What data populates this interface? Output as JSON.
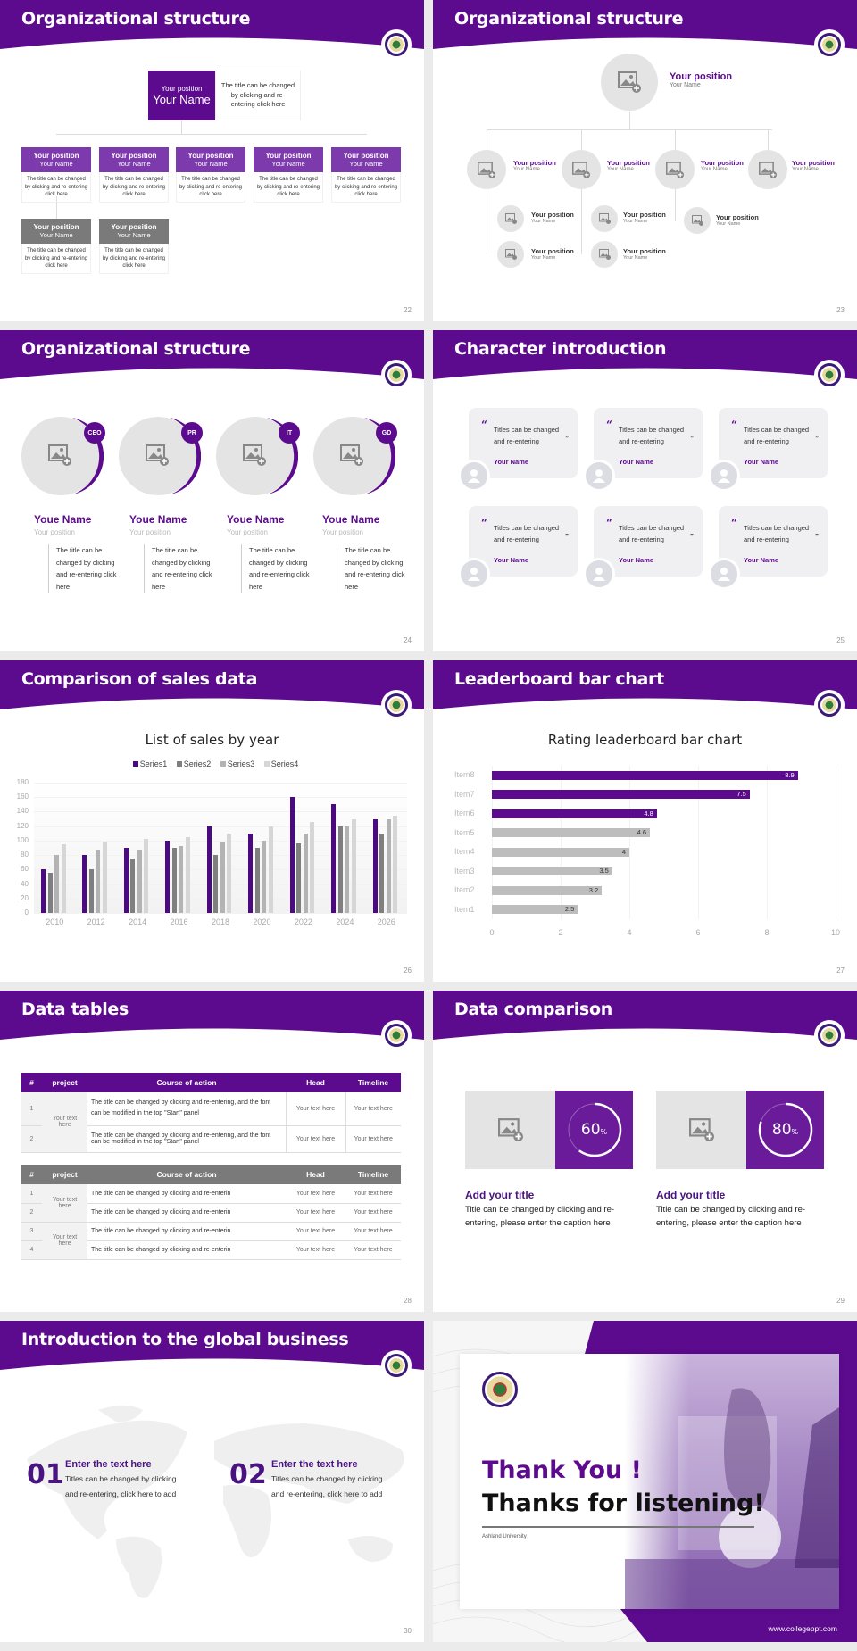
{
  "colors": {
    "purple": "#5c0a8e",
    "purple_light": "#7c3aac",
    "grey_dark": "#7a7a7a",
    "grey_med": "#a6a6a6",
    "grey_light": "#d0d0d0",
    "placeholder": "#e4e4e4"
  },
  "slides": [
    {
      "num": "22",
      "title": "Organizational structure",
      "top": {
        "position": "Your position",
        "name": "Your Name",
        "desc": "The title can be changed by clicking and re-entering click here"
      },
      "cards": [
        {
          "position": "Your position",
          "name": "Your Name",
          "desc": "The title can be changed by clicking and re-entering click here"
        },
        {
          "position": "Your position",
          "name": "Your Name",
          "desc": "The title can be changed by clicking and re-entering click here"
        },
        {
          "position": "Your position",
          "name": "Your Name",
          "desc": "The title can be changed by clicking and re-entering click here"
        },
        {
          "position": "Your position",
          "name": "Your Name",
          "desc": "The title can be changed by clicking and re-entering click here"
        },
        {
          "position": "Your position",
          "name": "Your Name",
          "desc": "The title can be changed by clicking and re-entering click here"
        },
        {
          "position": "Your position",
          "name": "Your Name",
          "desc": "The title can be changed by clicking and re-entering click here"
        },
        {
          "position": "Your position",
          "name": "Your Name",
          "desc": "The title can be changed by clicking and re-entering click here"
        }
      ]
    },
    {
      "num": "23",
      "title": "Organizational structure",
      "top": {
        "position": "Your position",
        "name": "Your Name"
      },
      "level2": [
        {
          "position": "Your position",
          "name": "Your Name"
        },
        {
          "position": "Your position",
          "name": "Your Name"
        },
        {
          "position": "Your position",
          "name": "Your Name"
        },
        {
          "position": "Your position",
          "name": "Your Name"
        }
      ],
      "level3": [
        {
          "position": "Your position",
          "name": "Your Name"
        },
        {
          "position": "Your position",
          "name": "Your Name"
        },
        {
          "position": "Your position",
          "name": "Your Name"
        },
        {
          "position": "Your position",
          "name": "Your Name"
        },
        {
          "position": "Your position",
          "name": "Your Name"
        }
      ]
    },
    {
      "num": "24",
      "title": "Organizational structure",
      "members": [
        {
          "badge": "CEO",
          "name": "Youe Name",
          "position": "Your position",
          "desc": "The title can be changed by clicking and re-entering click here"
        },
        {
          "badge": "PR",
          "name": "Youe Name",
          "position": "Your position",
          "desc": "The title can be changed by clicking and re-entering click here"
        },
        {
          "badge": "IT",
          "name": "Youe Name",
          "position": "Your position",
          "desc": "The title can be changed by clicking and re-entering click here"
        },
        {
          "badge": "GD",
          "name": "Youe Name",
          "position": "Your position",
          "desc": "The title can be changed by clicking and re-entering click here"
        }
      ]
    },
    {
      "num": "25",
      "title": "Character introduction",
      "quotes": [
        {
          "text": "Titles can be changed and re-entering",
          "name": "Your Name"
        },
        {
          "text": "Titles can be changed and re-entering",
          "name": "Your Name"
        },
        {
          "text": "Titles can be changed and re-entering",
          "name": "Your Name"
        },
        {
          "text": "Titles can be changed and re-entering",
          "name": "Your Name"
        },
        {
          "text": "Titles can be changed and re-entering",
          "name": "Your Name"
        },
        {
          "text": "Titles can be changed and re-entering",
          "name": "Your Name"
        }
      ],
      "open_quote": "“",
      "close_quote": "”"
    },
    {
      "num": "26",
      "title": "Comparison of sales data"
    },
    {
      "num": "27",
      "title": "Leaderboard bar chart"
    },
    {
      "num": "28",
      "title": "Data tables",
      "table1": {
        "headers": [
          "#",
          "project",
          "Course of action",
          "Head",
          "Timeline"
        ],
        "project": "Your text here",
        "rows": [
          {
            "n": "1",
            "action": "The title can be changed by clicking and re-entering, and the font can be modified in the top \"Start\" panel",
            "head": "Your text here",
            "timeline": "Your text here"
          },
          {
            "n": "2",
            "action": "The title can be changed by clicking and re-entering, and the font can be modified in the top \"Start\" panel",
            "head": "Your text here",
            "timeline": "Your text here"
          }
        ]
      },
      "table2": {
        "headers": [
          "#",
          "project",
          "Course of action",
          "Head",
          "Timeline"
        ],
        "projects": [
          "Your text here",
          "Your text here"
        ],
        "rows": [
          {
            "n": "1",
            "action": "The title can be changed by clicking and re-enterin",
            "head": "Your text here",
            "timeline": "Your text here"
          },
          {
            "n": "2",
            "action": "The title can be changed by clicking and re-enterin",
            "head": "Your text here",
            "timeline": "Your text here"
          },
          {
            "n": "3",
            "action": "The title can be changed by clicking and re-enterin",
            "head": "Your text here",
            "timeline": "Your text here"
          },
          {
            "n": "4",
            "action": "The title can be changed by clicking and re-enterin",
            "head": "Your text here",
            "timeline": "Your text here"
          }
        ]
      }
    },
    {
      "num": "29",
      "title": "Data comparison",
      "items": [
        {
          "value": "60",
          "unit": "%",
          "pct": 60,
          "title": "Add your title",
          "text": "Title can be changed by clicking and re-entering, please enter the caption here"
        },
        {
          "value": "80",
          "unit": "%",
          "pct": 80,
          "title": "Add your title",
          "text": "Title can be changed by clicking and re-entering, please enter the caption here"
        }
      ]
    },
    {
      "num": "30",
      "title": "Introduction to the global business",
      "items": [
        {
          "num": "01",
          "title": "Enter the text here",
          "text": "Titles can be changed by clicking and re-entering, click here to add"
        },
        {
          "num": "02",
          "title": "Enter the text here",
          "text": "Titles can be changed by clicking and re-entering, click here to add"
        }
      ]
    },
    {
      "thanks": "Thank You !",
      "listening": "Thanks for listening!",
      "university": "Ashland University",
      "url": "www.collegeppt.com"
    }
  ],
  "chart_data": [
    {
      "type": "bar",
      "title": "List of sales by year",
      "xlabel": "",
      "ylabel": "",
      "categories": [
        "2010",
        "2012",
        "2014",
        "2016",
        "2018",
        "2020",
        "2022",
        "2024",
        "2026"
      ],
      "series": [
        {
          "name": "Series1",
          "color": "#4b0a82",
          "values": [
            60,
            80,
            90,
            100,
            120,
            110,
            160,
            150,
            130
          ]
        },
        {
          "name": "Series2",
          "color": "#7f7f7f",
          "values": [
            55,
            60,
            75,
            90,
            80,
            90,
            96,
            120,
            110
          ]
        },
        {
          "name": "Series3",
          "color": "#b3b3b3",
          "values": [
            80,
            86,
            88,
            92,
            98,
            100,
            110,
            120,
            130
          ]
        },
        {
          "name": "Series4",
          "color": "#d6d6d6",
          "values": [
            95,
            99,
            102,
            105,
            110,
            120,
            126,
            130,
            135
          ]
        }
      ],
      "ylim": [
        0,
        180
      ],
      "yticks": [
        0,
        20,
        40,
        60,
        80,
        100,
        120,
        140,
        160,
        180
      ],
      "legend_position": "top",
      "grid": true
    },
    {
      "type": "bar",
      "orientation": "horizontal",
      "title": "Rating leaderboard bar chart",
      "categories": [
        "Item8",
        "Item7",
        "Item6",
        "Item5",
        "Item4",
        "Item3",
        "Item2",
        "Item1"
      ],
      "values": [
        8.9,
        7.5,
        4.8,
        4.6,
        4,
        3.5,
        3.2,
        2.5
      ],
      "labels": [
        "8.9",
        "7.5",
        "4.8",
        "4.6",
        "4",
        "3.5",
        "3.2",
        "2.5"
      ],
      "highlight_top": 3,
      "xlim": [
        0,
        10
      ],
      "xticks": [
        "0",
        "2",
        "4",
        "6",
        "8",
        "10"
      ],
      "grid": true
    }
  ]
}
